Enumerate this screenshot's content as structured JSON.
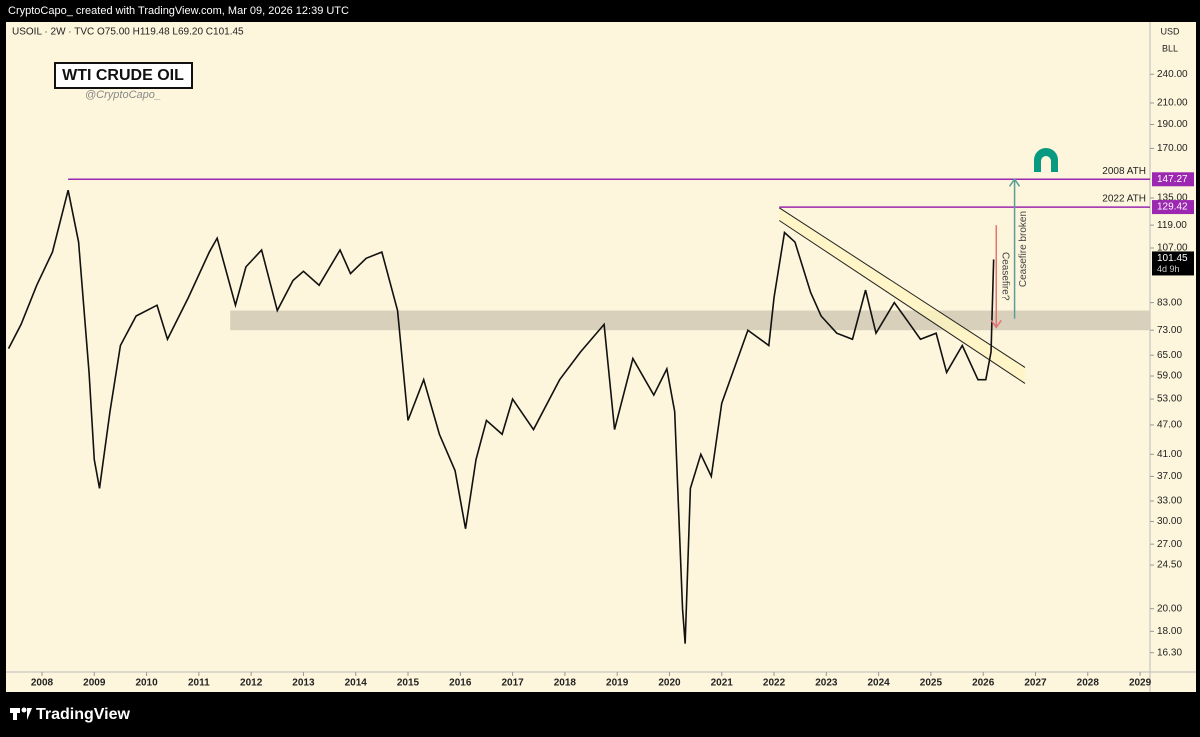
{
  "header": {
    "text": "CryptoCapo_  created with TradingView.com, Mar 09, 2026 12:39 UTC"
  },
  "footer": {
    "brand": "TradingView"
  },
  "chart_data": {
    "type": "line",
    "symbol": "USOIL · 2W · TVC  O75.00  H119.48  L69.20  C101.45",
    "title": "WTI CRUDE OIL",
    "subtitle": "@CryptoCapo_",
    "currency": "USD",
    "unit": "BLL",
    "log_scale": true,
    "xlim": [
      2007.35,
      2029.19
    ],
    "xticks": [
      2008,
      2009,
      2010,
      2011,
      2012,
      2013,
      2014,
      2015,
      2016,
      2017,
      2018,
      2019,
      2020,
      2021,
      2022,
      2023,
      2024,
      2025,
      2026,
      2027,
      2028,
      2029
    ],
    "ylim": [
      14.9,
      306
    ],
    "yticks": [
      {
        "value": 240,
        "label": "240.00"
      },
      {
        "value": 210,
        "label": "210.00"
      },
      {
        "value": 190,
        "label": "190.00"
      },
      {
        "value": 170,
        "label": "170.00"
      },
      {
        "value": 135,
        "label": "135.00"
      },
      {
        "value": 119,
        "label": "119.00"
      },
      {
        "value": 107,
        "label": "107.00"
      },
      {
        "value": 83,
        "label": "83.00"
      },
      {
        "value": 73,
        "label": "73.00"
      },
      {
        "value": 65,
        "label": "65.00"
      },
      {
        "value": 59,
        "label": "59.00"
      },
      {
        "value": 53,
        "label": "53.00"
      },
      {
        "value": 47,
        "label": "47.00"
      },
      {
        "value": 41,
        "label": "41.00"
      },
      {
        "value": 37,
        "label": "37.00"
      },
      {
        "value": 33,
        "label": "33.00"
      },
      {
        "value": 30,
        "label": "30.00"
      },
      {
        "value": 27,
        "label": "27.00"
      },
      {
        "value": 24.5,
        "label": "24.50"
      },
      {
        "value": 20,
        "label": "20.00"
      },
      {
        "value": 18,
        "label": "18.00"
      },
      {
        "value": 16.3,
        "label": "16.30"
      }
    ],
    "series": [
      {
        "name": "USOIL",
        "color": "#111111",
        "x": [
          2007.36,
          2007.6,
          2007.9,
          2008.2,
          2008.5,
          2008.7,
          2008.9,
          2009.0,
          2009.1,
          2009.3,
          2009.5,
          2009.8,
          2010.2,
          2010.4,
          2010.8,
          2011.2,
          2011.35,
          2011.7,
          2011.9,
          2012.2,
          2012.5,
          2012.8,
          2013.0,
          2013.3,
          2013.7,
          2013.9,
          2014.2,
          2014.5,
          2014.8,
          2015.0,
          2015.3,
          2015.6,
          2015.9,
          2016.1,
          2016.3,
          2016.5,
          2016.8,
          2017.0,
          2017.4,
          2017.9,
          2018.3,
          2018.75,
          2018.95,
          2019.3,
          2019.7,
          2019.95,
          2020.1,
          2020.25,
          2020.3,
          2020.4,
          2020.6,
          2020.8,
          2021.0,
          2021.5,
          2021.9,
          2022.0,
          2022.2,
          2022.4,
          2022.7,
          2022.9,
          2023.2,
          2023.5,
          2023.75,
          2023.95,
          2024.3,
          2024.6,
          2024.8,
          2025.1,
          2025.3,
          2025.6,
          2025.9,
          2026.05,
          2026.15,
          2026.2
        ],
        "values": [
          67,
          75,
          90,
          105,
          140,
          110,
          60,
          40,
          35,
          50,
          68,
          78,
          82,
          70,
          85,
          105,
          112,
          82,
          98,
          106,
          80,
          92,
          96,
          90,
          106,
          95,
          102,
          105,
          80,
          48,
          58,
          45,
          38,
          29,
          40,
          48,
          45,
          53,
          46,
          58,
          66,
          75,
          46,
          64,
          54,
          61,
          50,
          20,
          17,
          35,
          41,
          37,
          52,
          73,
          68,
          85,
          115,
          110,
          87,
          78,
          72,
          70,
          88,
          72,
          83,
          75,
          70,
          72,
          60,
          68,
          58,
          58,
          66,
          101.45
        ]
      }
    ],
    "last_price": 101.45,
    "countdown": "4d 9h",
    "levels": [
      {
        "label": "2008 ATH",
        "value": 147.27,
        "start": 2008.5,
        "color": "#9c27b0"
      },
      {
        "label": "2022 ATH",
        "value": 129.42,
        "start": 2022.1,
        "color": "#9c27b0"
      }
    ],
    "zone": {
      "from": 73,
      "to": 80,
      "start": 2011.6,
      "color": "#d8d0ba"
    },
    "channel": {
      "color": "#fff5c0",
      "upper": {
        "x": [
          2022.1,
          2026.8
        ],
        "values": [
          129,
          61.4
        ]
      },
      "lower": {
        "x": [
          2022.1,
          2026.8
        ],
        "values": [
          121.6,
          57
        ]
      }
    },
    "arrows": [
      {
        "text": "Ceasefire?",
        "x": 2026.25,
        "from": 119,
        "to": 74,
        "color": "#e57373"
      },
      {
        "text": "Ceasefire broken",
        "x": 2026.6,
        "from": 77,
        "to": 147.27,
        "color": "#5a9e9a"
      }
    ]
  }
}
